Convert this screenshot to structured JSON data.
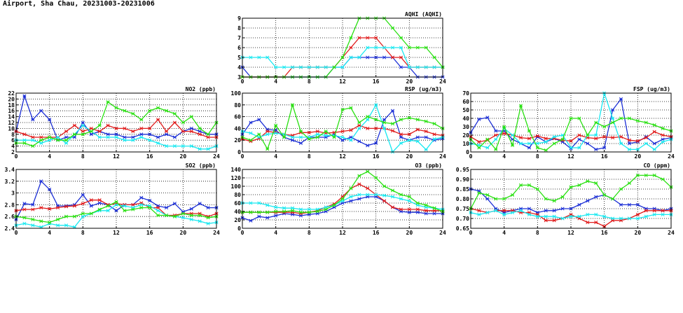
{
  "page": {
    "title": "Airport, Sha Chau, 20231003-20231006"
  },
  "colors": {
    "blue": "#1c2fd6",
    "red": "#e01b1b",
    "cyan": "#18e8f0",
    "green": "#29e011"
  },
  "chart_data": [
    {
      "id": "aqhi",
      "type": "line",
      "title": "AQHI (AQHI)",
      "xlim": [
        0,
        24
      ],
      "xticks": [
        0,
        4,
        8,
        12,
        16,
        20,
        24
      ],
      "ylim": [
        3,
        9
      ],
      "yticks": [
        3,
        4,
        5,
        6,
        7,
        8,
        9
      ],
      "x": [
        0,
        1,
        2,
        3,
        4,
        5,
        6,
        7,
        8,
        9,
        10,
        11,
        12,
        13,
        14,
        15,
        16,
        17,
        18,
        19,
        20,
        21,
        22,
        23,
        24
      ],
      "series": [
        {
          "color": "blue",
          "values": [
            4,
            3,
            3,
            3,
            3,
            3,
            3,
            3,
            3,
            3,
            3,
            4,
            4,
            5,
            5,
            5,
            5,
            5,
            5,
            4,
            4,
            3,
            3,
            3,
            3
          ]
        },
        {
          "color": "red",
          "values": [
            3,
            3,
            3,
            3,
            3,
            3,
            4,
            4,
            4,
            4,
            4,
            4,
            5,
            6,
            7,
            7,
            7,
            6,
            5,
            5,
            4,
            4,
            4,
            4,
            4
          ]
        },
        {
          "color": "cyan",
          "values": [
            5,
            5,
            5,
            5,
            4,
            4,
            4,
            4,
            4,
            4,
            4,
            4,
            4,
            5,
            5,
            6,
            6,
            6,
            6,
            6,
            4,
            4,
            4,
            4,
            4
          ]
        },
        {
          "color": "green",
          "values": [
            3,
            3,
            3,
            3,
            3,
            3,
            3,
            3,
            3,
            3,
            3,
            4,
            5,
            7,
            9,
            9,
            9,
            9,
            8,
            7,
            6,
            6,
            6,
            5,
            4
          ]
        }
      ]
    },
    {
      "id": "no2",
      "type": "line",
      "title": "NO2 (ppb)",
      "xlim": [
        0,
        24
      ],
      "xticks": [
        0,
        4,
        8,
        12,
        16,
        20,
        24
      ],
      "ylim": [
        2,
        22
      ],
      "yticks": [
        2,
        4,
        6,
        8,
        10,
        12,
        14,
        16,
        18,
        20,
        22
      ],
      "x": [
        0,
        1,
        2,
        3,
        4,
        5,
        6,
        7,
        8,
        9,
        10,
        11,
        12,
        13,
        14,
        15,
        16,
        17,
        18,
        19,
        20,
        21,
        22,
        23,
        24
      ],
      "series": [
        {
          "color": "blue",
          "values": [
            9,
            21,
            13,
            16,
            13,
            6,
            7,
            7,
            12,
            8,
            9,
            8,
            8,
            7,
            7,
            8,
            8,
            7,
            8,
            7,
            9,
            10,
            9,
            8,
            8
          ]
        },
        {
          "color": "red",
          "values": [
            9,
            8,
            7,
            7,
            7,
            7,
            9,
            11,
            9,
            10,
            9,
            11,
            10,
            10,
            9,
            10,
            10,
            13,
            9,
            12,
            9,
            9,
            8,
            7,
            7
          ]
        },
        {
          "color": "cyan",
          "values": [
            6,
            6,
            6,
            5,
            6,
            7,
            5,
            8,
            11,
            9,
            7,
            7,
            7,
            6,
            6,
            7,
            6,
            5,
            4,
            4,
            4,
            4,
            3,
            3,
            4
          ]
        },
        {
          "color": "green",
          "values": [
            5,
            5,
            4,
            6,
            7,
            6,
            6,
            8,
            8,
            9,
            11,
            19,
            17,
            16,
            15,
            13,
            16,
            17,
            16,
            15,
            12,
            14,
            10,
            8,
            12
          ]
        }
      ]
    },
    {
      "id": "rsp",
      "type": "line",
      "title": "RSP (ug/m3)",
      "xlim": [
        0,
        24
      ],
      "xticks": [
        0,
        4,
        8,
        12,
        16,
        20,
        24
      ],
      "ylim": [
        0,
        100
      ],
      "yticks": [
        0,
        20,
        40,
        60,
        80,
        100
      ],
      "x": [
        0,
        1,
        2,
        3,
        4,
        5,
        6,
        7,
        8,
        9,
        10,
        11,
        12,
        13,
        14,
        15,
        16,
        17,
        18,
        19,
        20,
        21,
        22,
        23,
        24
      ],
      "series": [
        {
          "color": "blue",
          "values": [
            30,
            50,
            55,
            38,
            37,
            25,
            20,
            15,
            25,
            25,
            25,
            30,
            20,
            25,
            18,
            11,
            15,
            55,
            70,
            25,
            20,
            25,
            25,
            20,
            23
          ]
        },
        {
          "color": "red",
          "values": [
            22,
            18,
            23,
            35,
            33,
            30,
            28,
            33,
            33,
            35,
            32,
            33,
            35,
            37,
            45,
            40,
            40,
            40,
            36,
            30,
            30,
            38,
            35,
            30,
            28
          ]
        },
        {
          "color": "cyan",
          "values": [
            35,
            32,
            25,
            30,
            32,
            30,
            25,
            25,
            25,
            30,
            28,
            28,
            25,
            20,
            40,
            55,
            80,
            40,
            0,
            15,
            20,
            18,
            4,
            22,
            25
          ]
        },
        {
          "color": "green",
          "values": [
            25,
            20,
            30,
            5,
            45,
            25,
            80,
            35,
            22,
            25,
            35,
            25,
            72,
            75,
            50,
            60,
            55,
            50,
            48,
            55,
            58,
            55,
            52,
            48,
            40
          ]
        }
      ]
    },
    {
      "id": "fsp",
      "type": "line",
      "title": "FSP (ug/m3)",
      "xlim": [
        0,
        24
      ],
      "xticks": [
        0,
        4,
        8,
        12,
        16,
        20,
        24
      ],
      "ylim": [
        0,
        70
      ],
      "yticks": [
        0,
        10,
        20,
        30,
        40,
        50,
        60,
        70
      ],
      "x": [
        0,
        1,
        2,
        3,
        4,
        5,
        6,
        7,
        8,
        9,
        10,
        11,
        12,
        13,
        14,
        15,
        16,
        17,
        18,
        19,
        20,
        21,
        22,
        23,
        24
      ],
      "series": [
        {
          "color": "blue",
          "values": [
            23,
            39,
            41,
            25,
            25,
            15,
            10,
            5,
            18,
            12,
            16,
            12,
            4,
            15,
            10,
            3,
            5,
            50,
            63,
            10,
            12,
            18,
            10,
            15,
            17
          ]
        },
        {
          "color": "red",
          "values": [
            18,
            12,
            14,
            20,
            22,
            20,
            17,
            16,
            19,
            16,
            16,
            14,
            13,
            20,
            17,
            16,
            18,
            17,
            18,
            14,
            13,
            17,
            24,
            20,
            18
          ]
        },
        {
          "color": "cyan",
          "values": [
            10,
            8,
            5,
            15,
            28,
            20,
            10,
            10,
            10,
            12,
            18,
            20,
            5,
            5,
            20,
            20,
            70,
            40,
            10,
            3,
            3,
            10,
            3,
            12,
            15
          ]
        },
        {
          "color": "green",
          "values": [
            15,
            5,
            15,
            3,
            30,
            8,
            55,
            25,
            5,
            2,
            10,
            15,
            40,
            40,
            20,
            35,
            30,
            35,
            40,
            40,
            37,
            35,
            32,
            28,
            25
          ]
        }
      ]
    },
    {
      "id": "so2",
      "type": "line",
      "title": "SO2 (ppb)",
      "xlim": [
        0,
        24
      ],
      "xticks": [
        0,
        4,
        8,
        12,
        16,
        20,
        24
      ],
      "ylim": [
        2.4,
        3.4
      ],
      "yticks": [
        2.4,
        2.6,
        2.8,
        3.0,
        3.2,
        3.4
      ],
      "x": [
        0,
        1,
        2,
        3,
        4,
        5,
        6,
        7,
        8,
        9,
        10,
        11,
        12,
        13,
        14,
        15,
        16,
        17,
        18,
        19,
        20,
        21,
        22,
        23,
        24
      ],
      "series": [
        {
          "color": "blue",
          "values": [
            2.55,
            2.82,
            2.8,
            3.2,
            3.06,
            2.78,
            2.78,
            2.8,
            2.97,
            2.78,
            2.83,
            2.8,
            2.7,
            2.8,
            2.8,
            2.92,
            2.87,
            2.78,
            2.75,
            2.82,
            2.68,
            2.73,
            2.82,
            2.75,
            2.75
          ]
        },
        {
          "color": "red",
          "values": [
            2.7,
            2.72,
            2.72,
            2.75,
            2.73,
            2.75,
            2.77,
            2.78,
            2.82,
            2.88,
            2.88,
            2.8,
            2.82,
            2.8,
            2.8,
            2.83,
            2.75,
            2.75,
            2.62,
            2.62,
            2.65,
            2.65,
            2.65,
            2.6,
            2.65
          ]
        },
        {
          "color": "cyan",
          "values": [
            2.45,
            2.48,
            2.45,
            2.42,
            2.48,
            2.45,
            2.45,
            2.42,
            2.6,
            2.65,
            2.7,
            2.7,
            2.8,
            2.78,
            2.75,
            2.8,
            2.78,
            2.7,
            2.62,
            2.6,
            2.58,
            2.55,
            2.52,
            2.48,
            2.5
          ]
        },
        {
          "color": "green",
          "values": [
            2.6,
            2.58,
            2.55,
            2.52,
            2.5,
            2.55,
            2.6,
            2.6,
            2.65,
            2.65,
            2.72,
            2.78,
            2.85,
            2.7,
            2.72,
            2.75,
            2.75,
            2.62,
            2.62,
            2.6,
            2.65,
            2.62,
            2.62,
            2.58,
            2.6
          ]
        }
      ]
    },
    {
      "id": "o3",
      "type": "line",
      "title": "O3 (ppb)",
      "xlim": [
        0,
        24
      ],
      "xticks": [
        0,
        4,
        8,
        12,
        16,
        20,
        24
      ],
      "ylim": [
        0,
        140
      ],
      "yticks": [
        0,
        20,
        40,
        60,
        80,
        100,
        120,
        140
      ],
      "x": [
        0,
        1,
        2,
        3,
        4,
        5,
        6,
        7,
        8,
        9,
        10,
        11,
        12,
        13,
        14,
        15,
        16,
        17,
        18,
        19,
        20,
        21,
        22,
        23,
        24
      ],
      "series": [
        {
          "color": "blue",
          "values": [
            25,
            18,
            28,
            25,
            30,
            35,
            33,
            30,
            33,
            35,
            40,
            50,
            60,
            65,
            70,
            75,
            75,
            65,
            50,
            40,
            38,
            38,
            35,
            35,
            35
          ]
        },
        {
          "color": "red",
          "values": [
            38,
            38,
            38,
            38,
            38,
            38,
            38,
            35,
            38,
            42,
            50,
            58,
            75,
            95,
            105,
            95,
            80,
            65,
            50,
            45,
            45,
            45,
            42,
            42,
            42
          ]
        },
        {
          "color": "cyan",
          "values": [
            60,
            60,
            60,
            55,
            50,
            48,
            48,
            45,
            45,
            45,
            50,
            55,
            65,
            75,
            80,
            80,
            80,
            78,
            75,
            70,
            65,
            55,
            50,
            48,
            45
          ]
        },
        {
          "color": "green",
          "values": [
            38,
            38,
            38,
            38,
            40,
            40,
            42,
            38,
            38,
            40,
            45,
            55,
            70,
            95,
            125,
            135,
            120,
            100,
            90,
            80,
            75,
            60,
            55,
            48,
            40
          ]
        }
      ]
    },
    {
      "id": "co",
      "type": "line",
      "title": "CO (ppm)",
      "xlim": [
        0,
        24
      ],
      "xticks": [
        0,
        4,
        8,
        12,
        16,
        20,
        24
      ],
      "ylim": [
        0.65,
        0.95
      ],
      "yticks": [
        0.65,
        0.7,
        0.75,
        0.8,
        0.85,
        0.9,
        0.95
      ],
      "ytick_labels": [
        "0.65",
        "0.70",
        "0.75",
        "0.80",
        "0.85",
        "0.90",
        "0.95"
      ],
      "x": [
        0,
        1,
        2,
        3,
        4,
        5,
        6,
        7,
        8,
        9,
        10,
        11,
        12,
        13,
        14,
        15,
        16,
        17,
        18,
        19,
        20,
        21,
        22,
        23,
        24
      ],
      "series": [
        {
          "color": "blue",
          "values": [
            0.85,
            0.84,
            0.8,
            0.75,
            0.73,
            0.74,
            0.75,
            0.75,
            0.73,
            0.74,
            0.74,
            0.75,
            0.75,
            0.77,
            0.79,
            0.81,
            0.82,
            0.8,
            0.77,
            0.77,
            0.77,
            0.75,
            0.75,
            0.74,
            0.75
          ]
        },
        {
          "color": "red",
          "values": [
            0.75,
            0.74,
            0.73,
            0.74,
            0.74,
            0.74,
            0.73,
            0.73,
            0.72,
            0.69,
            0.69,
            0.7,
            0.72,
            0.7,
            0.68,
            0.68,
            0.66,
            0.69,
            0.69,
            0.7,
            0.72,
            0.74,
            0.74,
            0.74,
            0.74
          ]
        },
        {
          "color": "cyan",
          "values": [
            0.73,
            0.72,
            0.73,
            0.74,
            0.72,
            0.73,
            0.74,
            0.72,
            0.71,
            0.71,
            0.71,
            0.7,
            0.71,
            0.71,
            0.72,
            0.72,
            0.71,
            0.7,
            0.7,
            0.7,
            0.7,
            0.71,
            0.72,
            0.72,
            0.72
          ]
        },
        {
          "color": "green",
          "values": [
            0.75,
            0.83,
            0.82,
            0.8,
            0.8,
            0.82,
            0.87,
            0.87,
            0.85,
            0.8,
            0.79,
            0.81,
            0.86,
            0.87,
            0.89,
            0.88,
            0.82,
            0.8,
            0.85,
            0.88,
            0.92,
            0.92,
            0.92,
            0.9,
            0.86
          ]
        }
      ]
    }
  ]
}
